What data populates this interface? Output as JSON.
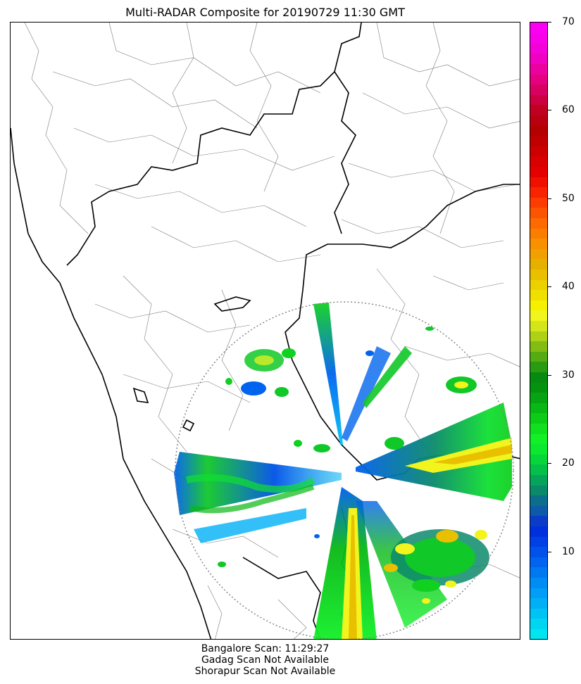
{
  "title": "Multi-RADAR Composite for 20190729 11:30 GMT",
  "footer": {
    "line1": "Bangalore Scan: 11:29:27",
    "line2": "Gadag Scan Not Available",
    "line3": "Shorapur Scan Not Available"
  },
  "chart_data": {
    "type": "heatmap",
    "title": "Multi-RADAR Composite for 20190729 11:30 GMT",
    "colorbar": {
      "min": 0,
      "max": 70,
      "ticks": [
        10,
        20,
        30,
        40,
        50,
        60,
        70
      ],
      "tick_labels": [
        "10",
        "20",
        "30",
        "40",
        "50",
        "60",
        "70"
      ],
      "colors": [
        "#00e5f0",
        "#00d5f2",
        "#00c3f5",
        "#00b0f6",
        "#009ef7",
        "#008cf5",
        "#0078f2",
        "#0064ee",
        "#0052ea",
        "#0040e4",
        "#0030de",
        "#0a3cc8",
        "#0d5aa8",
        "#0c6e8a",
        "#0a8a6a",
        "#06a45a",
        "#04c048",
        "#06d63a",
        "#0ae830",
        "#12f028",
        "#10e01e",
        "#0ccc18",
        "#08b814",
        "#06a412",
        "#04920f",
        "#068a10",
        "#2a9a10",
        "#56aa12",
        "#82bc14",
        "#aed016",
        "#d4e61a",
        "#f2f41e",
        "#f4f000",
        "#f0e000",
        "#ecd000",
        "#e8c000",
        "#e6b000",
        "#f0a000",
        "#f89000",
        "#fc7e00",
        "#fc6a00",
        "#fc5400",
        "#fc3c00",
        "#f82400",
        "#f01000",
        "#e40000",
        "#d80000",
        "#cc0000",
        "#c00000",
        "#b40000",
        "#b80010",
        "#c00020",
        "#cc0040",
        "#d80060",
        "#e40080",
        "#ec00a0",
        "#f000c0",
        "#f400d8",
        "#f800e8",
        "#fc00f4"
      ]
    },
    "radar": {
      "site": "Bangalore",
      "scan_time": "11:29:27",
      "gadag_status": "Gadag Scan Not Available",
      "shorapur_status": "Shorapur Scan Not Available",
      "range_ring": "dotted"
    }
  }
}
